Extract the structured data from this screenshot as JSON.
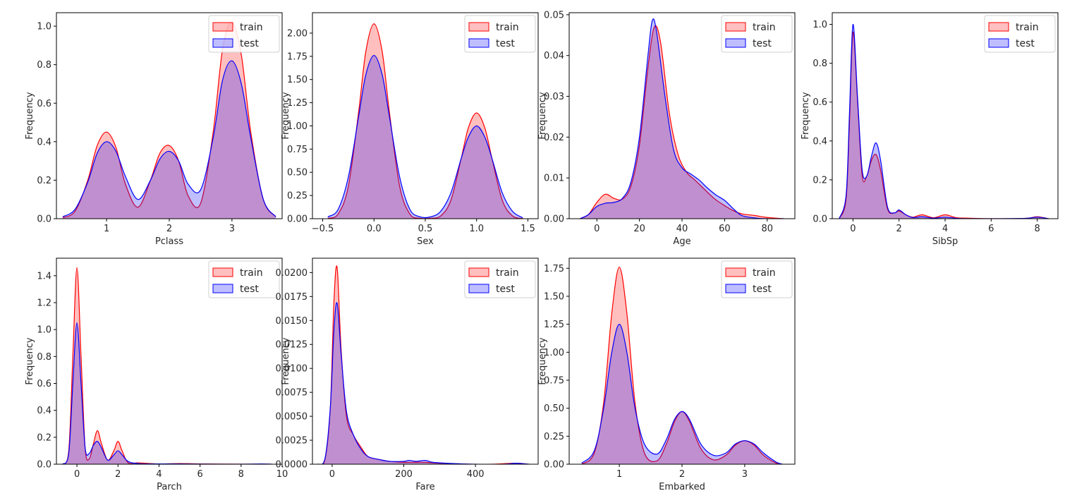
{
  "legend": {
    "entries": [
      "train",
      "test"
    ],
    "placement": "upper right"
  },
  "colors": {
    "train_line": "#ff0000",
    "train_fill": "#ff0000",
    "test_line": "#0000ff",
    "test_fill": "#0000ff",
    "fill_alpha": 0.25
  },
  "chart_data": [
    {
      "type": "area",
      "xlabel": "Pclass",
      "ylabel": "Frequency",
      "xlim": [
        0.2,
        3.8
      ],
      "ylim": [
        0,
        1.07
      ],
      "xticks": [
        1,
        2,
        3
      ],
      "xticklabels": [
        "1",
        "2",
        "3"
      ],
      "yticks": [
        0,
        0.2,
        0.4,
        0.6,
        0.8,
        1.0
      ],
      "yticklabels": [
        "0.0",
        "0.2",
        "0.4",
        "0.6",
        "0.8",
        "1.0"
      ],
      "series": [
        {
          "name": "train",
          "x": [
            0.3,
            0.5,
            0.7,
            0.85,
            1.0,
            1.15,
            1.3,
            1.5,
            1.7,
            1.85,
            2.0,
            2.15,
            2.3,
            2.5,
            2.7,
            2.85,
            3.0,
            3.15,
            3.3,
            3.5,
            3.7
          ],
          "y": [
            0.005,
            0.04,
            0.2,
            0.38,
            0.45,
            0.37,
            0.18,
            0.06,
            0.2,
            0.34,
            0.38,
            0.3,
            0.12,
            0.08,
            0.45,
            0.88,
            1.02,
            0.85,
            0.45,
            0.1,
            0.01
          ]
        },
        {
          "name": "test",
          "x": [
            0.3,
            0.5,
            0.7,
            0.85,
            1.0,
            1.15,
            1.3,
            1.5,
            1.7,
            1.85,
            2.0,
            2.15,
            2.3,
            2.5,
            2.7,
            2.85,
            3.0,
            3.15,
            3.3,
            3.5,
            3.7
          ],
          "y": [
            0.01,
            0.05,
            0.19,
            0.34,
            0.4,
            0.35,
            0.22,
            0.1,
            0.2,
            0.31,
            0.35,
            0.3,
            0.18,
            0.15,
            0.42,
            0.72,
            0.82,
            0.7,
            0.42,
            0.1,
            0.01
          ]
        }
      ]
    },
    {
      "type": "area",
      "xlabel": "Sex",
      "ylabel": "Frequency",
      "xlim": [
        -0.6,
        1.6
      ],
      "ylim": [
        0,
        2.22
      ],
      "xticks": [
        -0.5,
        0.0,
        0.5,
        1.0,
        1.5
      ],
      "xticklabels": [
        "−0.5",
        "0.0",
        "0.5",
        "1.0",
        "1.5"
      ],
      "yticks": [
        0,
        0.25,
        0.5,
        0.75,
        1.0,
        1.25,
        1.5,
        1.75,
        2.0
      ],
      "yticklabels": [
        "0.00",
        "0.25",
        "0.50",
        "0.75",
        "1.00",
        "1.25",
        "1.50",
        "1.75",
        "2.00"
      ],
      "series": [
        {
          "name": "train",
          "x": [
            -0.45,
            -0.35,
            -0.25,
            -0.15,
            -0.08,
            0.0,
            0.08,
            0.15,
            0.25,
            0.35,
            0.45,
            0.55,
            0.65,
            0.75,
            0.85,
            0.92,
            1.0,
            1.08,
            1.15,
            1.25,
            1.35,
            1.45
          ],
          "y": [
            0.005,
            0.05,
            0.35,
            1.15,
            1.8,
            2.1,
            1.8,
            1.15,
            0.35,
            0.05,
            0.005,
            0.005,
            0.03,
            0.2,
            0.65,
            0.98,
            1.14,
            0.98,
            0.65,
            0.2,
            0.03,
            0.002
          ]
        },
        {
          "name": "test",
          "x": [
            -0.45,
            -0.35,
            -0.25,
            -0.15,
            -0.08,
            0.0,
            0.08,
            0.15,
            0.25,
            0.35,
            0.45,
            0.55,
            0.65,
            0.75,
            0.85,
            0.92,
            1.0,
            1.08,
            1.15,
            1.25,
            1.35,
            1.45
          ],
          "y": [
            0.02,
            0.1,
            0.45,
            1.1,
            1.55,
            1.76,
            1.55,
            1.1,
            0.45,
            0.1,
            0.02,
            0.02,
            0.08,
            0.28,
            0.65,
            0.88,
            1.0,
            0.88,
            0.65,
            0.28,
            0.08,
            0.01
          ]
        }
      ]
    },
    {
      "type": "area",
      "xlabel": "Age",
      "ylabel": "Frequency",
      "xlim": [
        -13,
        93
      ],
      "ylim": [
        0,
        0.0505
      ],
      "xticks": [
        0,
        20,
        40,
        60,
        80
      ],
      "xticklabels": [
        "0",
        "20",
        "40",
        "60",
        "80"
      ],
      "yticks": [
        0,
        0.01,
        0.02,
        0.03,
        0.04,
        0.05
      ],
      "yticklabels": [
        "0.00",
        "0.01",
        "0.02",
        "0.03",
        "0.04",
        "0.05"
      ],
      "series": [
        {
          "name": "train",
          "x": [
            -8,
            -4,
            0,
            4,
            8,
            12,
            16,
            20,
            24,
            27,
            30,
            34,
            38,
            42,
            46,
            50,
            55,
            60,
            64,
            68,
            74,
            80,
            88
          ],
          "y": [
            0.0,
            0.001,
            0.004,
            0.006,
            0.005,
            0.0048,
            0.008,
            0.018,
            0.037,
            0.047,
            0.043,
            0.026,
            0.016,
            0.0115,
            0.0095,
            0.0075,
            0.005,
            0.0032,
            0.002,
            0.0012,
            0.0008,
            0.0003,
            0.0
          ]
        },
        {
          "name": "test",
          "x": [
            -8,
            -4,
            0,
            4,
            8,
            12,
            16,
            20,
            24,
            26,
            28,
            32,
            36,
            40,
            44,
            48,
            52,
            56,
            60,
            64,
            68,
            74,
            80,
            88
          ],
          "y": [
            0.0,
            0.001,
            0.003,
            0.0038,
            0.004,
            0.005,
            0.009,
            0.02,
            0.04,
            0.0485,
            0.046,
            0.03,
            0.017,
            0.0125,
            0.011,
            0.0095,
            0.0075,
            0.0058,
            0.0045,
            0.0025,
            0.0008,
            0.0002,
            0.0,
            0.0
          ]
        }
      ]
    },
    {
      "type": "area",
      "xlabel": "SibSp",
      "ylabel": "Frequency",
      "xlim": [
        -0.9,
        8.9
      ],
      "ylim": [
        0,
        1.06
      ],
      "xticks": [
        0,
        2,
        4,
        6,
        8
      ],
      "xticklabels": [
        "0",
        "2",
        "4",
        "6",
        "8"
      ],
      "yticks": [
        0,
        0.2,
        0.4,
        0.6,
        0.8,
        1.0
      ],
      "yticklabels": [
        "0.0",
        "0.2",
        "0.4",
        "0.6",
        "0.8",
        "1.0"
      ],
      "series": [
        {
          "name": "train",
          "x": [
            -0.6,
            -0.3,
            -0.15,
            0.0,
            0.2,
            0.4,
            0.6,
            0.8,
            1.0,
            1.2,
            1.5,
            1.8,
            2.0,
            2.3,
            2.6,
            3.0,
            3.5,
            4.0,
            4.5,
            5.0,
            6.0,
            7.5,
            8.0,
            8.5
          ],
          "y": [
            0.0,
            0.1,
            0.5,
            0.96,
            0.6,
            0.22,
            0.22,
            0.3,
            0.33,
            0.25,
            0.05,
            0.03,
            0.04,
            0.02,
            0.008,
            0.02,
            0.005,
            0.02,
            0.005,
            0.003,
            0.0,
            0.002,
            0.01,
            0.0
          ]
        },
        {
          "name": "test",
          "x": [
            -0.6,
            -0.3,
            -0.15,
            0.0,
            0.2,
            0.4,
            0.6,
            0.8,
            1.0,
            1.2,
            1.5,
            1.8,
            2.0,
            2.3,
            2.6,
            3.0,
            3.5,
            4.0,
            4.5,
            5.0,
            6.0,
            7.5,
            8.0,
            8.5
          ],
          "y": [
            0.0,
            0.12,
            0.55,
            1.0,
            0.62,
            0.25,
            0.22,
            0.32,
            0.39,
            0.3,
            0.06,
            0.03,
            0.045,
            0.02,
            0.006,
            0.01,
            0.003,
            0.008,
            0.002,
            0.0,
            0.0,
            0.002,
            0.008,
            0.0
          ]
        }
      ]
    },
    {
      "type": "area",
      "xlabel": "Parch",
      "ylabel": "Frequency",
      "xlim": [
        -1.0,
        10.0
      ],
      "ylim": [
        0,
        1.53
      ],
      "xticks": [
        0,
        2,
        4,
        6,
        8,
        10
      ],
      "xticklabels": [
        "0",
        "2",
        "4",
        "6",
        "8",
        "10"
      ],
      "yticks": [
        0,
        0.2,
        0.4,
        0.6,
        0.8,
        1.0,
        1.2,
        1.4
      ],
      "yticklabels": [
        "0.0",
        "0.2",
        "0.4",
        "0.6",
        "0.8",
        "1.0",
        "1.2",
        "1.4"
      ],
      "series": [
        {
          "name": "train",
          "x": [
            -0.7,
            -0.4,
            -0.2,
            0.0,
            0.2,
            0.4,
            0.6,
            0.8,
            1.0,
            1.2,
            1.5,
            1.8,
            2.0,
            2.2,
            2.5,
            3.0,
            4.0,
            5.0,
            6.0,
            8.0,
            9.5
          ],
          "y": [
            0.0,
            0.1,
            0.8,
            1.46,
            0.8,
            0.12,
            0.04,
            0.15,
            0.25,
            0.15,
            0.03,
            0.1,
            0.17,
            0.1,
            0.01,
            0.01,
            0.002,
            0.005,
            0.002,
            0.0,
            0.0
          ]
        },
        {
          "name": "test",
          "x": [
            -0.7,
            -0.4,
            -0.2,
            0.0,
            0.2,
            0.4,
            0.6,
            0.8,
            1.0,
            1.2,
            1.5,
            1.8,
            2.0,
            2.2,
            2.5,
            3.0,
            4.0,
            5.0,
            6.0,
            8.0,
            9.0,
            9.5
          ],
          "y": [
            0.0,
            0.08,
            0.6,
            1.05,
            0.6,
            0.12,
            0.08,
            0.14,
            0.17,
            0.12,
            0.03,
            0.07,
            0.1,
            0.07,
            0.02,
            0.005,
            0.002,
            0.002,
            0.001,
            0.0,
            0.002,
            0.0
          ]
        }
      ]
    },
    {
      "type": "area",
      "xlabel": "Fare",
      "ylabel": "Frequency",
      "xlim": [
        -55,
        575
      ],
      "ylim": [
        0,
        0.0215
      ],
      "xticks": [
        0,
        200,
        400
      ],
      "xticklabels": [
        "0",
        "200",
        "400"
      ],
      "yticks": [
        0,
        0.0025,
        0.005,
        0.0075,
        0.01,
        0.0125,
        0.015,
        0.0175,
        0.02
      ],
      "yticklabels": [
        "0.0000",
        "0.0025",
        "0.0050",
        "0.0075",
        "0.0100",
        "0.0125",
        "0.0150",
        "0.0175",
        "0.0200"
      ],
      "series": [
        {
          "name": "train",
          "x": [
            -40,
            -20,
            -5,
            5,
            14,
            25,
            40,
            60,
            80,
            100,
            130,
            160,
            200,
            230,
            260,
            300,
            380,
            450,
            512,
            550
          ],
          "y": [
            0.0,
            0.0005,
            0.006,
            0.017,
            0.0205,
            0.012,
            0.005,
            0.003,
            0.0018,
            0.0008,
            0.0005,
            0.0003,
            0.0002,
            0.0002,
            0.0002,
            0.0001,
            0.0,
            0.0,
            0.0001,
            0.0
          ]
        },
        {
          "name": "test",
          "x": [
            -40,
            -20,
            -5,
            5,
            14,
            25,
            40,
            60,
            80,
            100,
            130,
            160,
            200,
            215,
            235,
            260,
            280,
            320,
            400,
            480,
            512,
            550
          ],
          "y": [
            0.0,
            0.0006,
            0.006,
            0.014,
            0.0168,
            0.0115,
            0.0055,
            0.003,
            0.0016,
            0.0008,
            0.0005,
            0.0003,
            0.0003,
            0.0004,
            0.0003,
            0.0004,
            0.0002,
            0.0001,
            0.0,
            0.0,
            0.0001,
            0.0
          ]
        }
      ]
    },
    {
      "type": "area",
      "xlabel": "Embarked",
      "ylabel": "Frequency",
      "xlim": [
        0.2,
        3.8
      ],
      "ylim": [
        0,
        1.84
      ],
      "xticks": [
        1,
        2,
        3
      ],
      "xticklabels": [
        "1",
        "2",
        "3"
      ],
      "yticks": [
        0,
        0.25,
        0.5,
        0.75,
        1.0,
        1.25,
        1.5,
        1.75
      ],
      "yticklabels": [
        "0.00",
        "0.25",
        "0.50",
        "0.75",
        "1.00",
        "1.25",
        "1.50",
        "1.75"
      ],
      "series": [
        {
          "name": "train",
          "x": [
            0.4,
            0.6,
            0.75,
            0.88,
            1.0,
            1.12,
            1.25,
            1.4,
            1.6,
            1.75,
            1.88,
            2.0,
            2.12,
            2.3,
            2.5,
            2.7,
            2.85,
            3.0,
            3.15,
            3.3,
            3.5,
            3.6
          ],
          "y": [
            0.0,
            0.1,
            0.55,
            1.35,
            1.76,
            1.35,
            0.55,
            0.1,
            0.03,
            0.18,
            0.38,
            0.47,
            0.38,
            0.14,
            0.04,
            0.08,
            0.17,
            0.21,
            0.17,
            0.08,
            0.01,
            0.0
          ]
        },
        {
          "name": "test",
          "x": [
            0.4,
            0.6,
            0.75,
            0.88,
            1.0,
            1.12,
            1.25,
            1.4,
            1.6,
            1.75,
            1.88,
            2.0,
            2.12,
            2.3,
            2.5,
            2.7,
            2.85,
            3.0,
            3.15,
            3.3,
            3.5,
            3.6
          ],
          "y": [
            0.01,
            0.12,
            0.5,
            1.0,
            1.25,
            1.0,
            0.5,
            0.18,
            0.09,
            0.22,
            0.4,
            0.47,
            0.4,
            0.18,
            0.08,
            0.1,
            0.18,
            0.21,
            0.18,
            0.1,
            0.02,
            0.0
          ]
        }
      ]
    }
  ]
}
